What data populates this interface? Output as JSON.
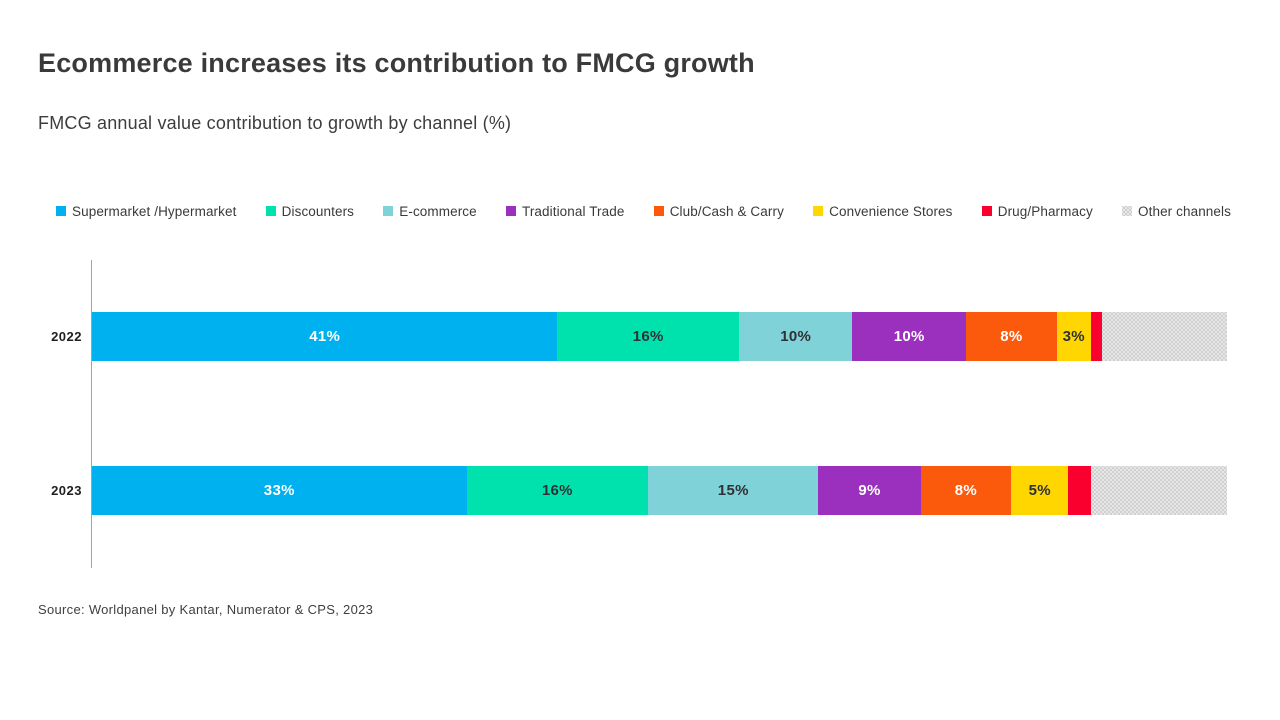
{
  "header": {
    "title": "Ecommerce increases its contribution to FMCG growth",
    "subtitle": "FMCG annual value contribution to growth by channel (%)"
  },
  "footer": {
    "source": "Source: Worldpanel by Kantar, Numerator & CPS, 2023"
  },
  "colors": {
    "background": "#ffffff",
    "title_text": "#3a3a3a",
    "axis_line": "#a9a396",
    "dark_label": "#2e3135",
    "light_label": "#ffffff"
  },
  "chart_data": {
    "type": "bar",
    "orientation": "horizontal-stacked",
    "title": "FMCG annual value contribution to growth by channel (%)",
    "categories": [
      "2022",
      "2023"
    ],
    "xlim": [
      0,
      100
    ],
    "grid": false,
    "legend_position": "top",
    "series": [
      {
        "name": "Supermarket /Hypermarket",
        "color": "#00b1f0",
        "values": [
          41,
          33
        ],
        "value_labels": [
          "41%",
          "33%"
        ],
        "label_color": "#ffffff"
      },
      {
        "name": "Discounters",
        "color": "#00e2ad",
        "values": [
          16,
          16
        ],
        "value_labels": [
          "16%",
          "16%"
        ],
        "label_color": "#2e3135"
      },
      {
        "name": "E-commerce",
        "color": "#7fd2d8",
        "values": [
          10,
          15
        ],
        "value_labels": [
          "10%",
          "15%"
        ],
        "label_color": "#2e3135"
      },
      {
        "name": "Traditional Trade",
        "color": "#9b2fbe",
        "values": [
          10,
          9
        ],
        "value_labels": [
          "10%",
          "9%"
        ],
        "label_color": "#ffffff"
      },
      {
        "name": "Club/Cash & Carry",
        "color": "#fb5a0d",
        "values": [
          8,
          8
        ],
        "value_labels": [
          "8%",
          "8%"
        ],
        "label_color": "#ffffff"
      },
      {
        "name": "Convenience Stores",
        "color": "#ffd600",
        "values": [
          3,
          5
        ],
        "value_labels": [
          "3%",
          "5%"
        ],
        "label_color": "#2e3135"
      },
      {
        "name": "Drug/Pharmacy",
        "color": "#f9002e",
        "values": [
          1,
          2
        ],
        "value_labels": [
          "",
          ""
        ],
        "label_color": "#ffffff"
      },
      {
        "name": "Other channels",
        "color": "#e7e7e7",
        "values": [
          11,
          12
        ],
        "value_labels": [
          "",
          ""
        ],
        "label_color": "#2e3135",
        "pattern": "dots"
      }
    ]
  }
}
